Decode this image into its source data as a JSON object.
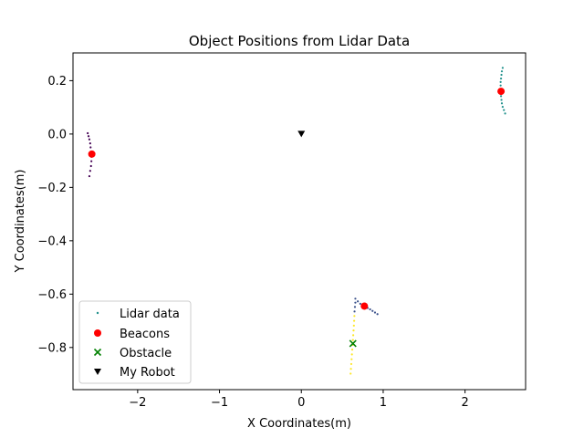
{
  "chart_data": {
    "type": "scatter",
    "title": "Object Positions from Lidar Data",
    "xlabel": "X Coordinates(m)",
    "ylabel": "Y Coordinates(m)",
    "xlim": [
      -2.79,
      2.74
    ],
    "ylim": [
      -0.958,
      0.304
    ],
    "xticks": [
      -2,
      -1,
      0,
      1,
      2
    ],
    "yticks": [
      0.2,
      0.0,
      -0.2,
      -0.4,
      -0.6,
      -0.8
    ],
    "xtick_labels": [
      "−2",
      "−1",
      "0",
      "1",
      "2"
    ],
    "ytick_labels": [
      "0.2",
      "0.0",
      "−0.2",
      "−0.4",
      "−0.6",
      "−0.8"
    ],
    "grid": false,
    "legend_position": "lower-left",
    "series": [
      {
        "name": "Lidar data",
        "marker": "point",
        "legend_color": "#21918c",
        "points": [
          {
            "x": -2.61,
            "y": 0.003,
            "color": "#440154"
          },
          {
            "x": -2.6,
            "y": -0.008,
            "color": "#440154"
          },
          {
            "x": -2.59,
            "y": -0.02,
            "color": "#440154"
          },
          {
            "x": -2.58,
            "y": -0.035,
            "color": "#440154"
          },
          {
            "x": -2.575,
            "y": -0.05,
            "color": "#440154"
          },
          {
            "x": -2.57,
            "y": -0.068,
            "color": "#440154"
          },
          {
            "x": -2.565,
            "y": -0.085,
            "color": "#440154"
          },
          {
            "x": -2.565,
            "y": -0.102,
            "color": "#440154"
          },
          {
            "x": -2.57,
            "y": -0.12,
            "color": "#440154"
          },
          {
            "x": -2.58,
            "y": -0.138,
            "color": "#440154"
          },
          {
            "x": -2.59,
            "y": -0.158,
            "color": "#440154"
          },
          {
            "x": 2.46,
            "y": 0.248,
            "color": "#21918c"
          },
          {
            "x": 2.45,
            "y": 0.235,
            "color": "#21918c"
          },
          {
            "x": 2.445,
            "y": 0.222,
            "color": "#21918c"
          },
          {
            "x": 2.44,
            "y": 0.208,
            "color": "#21918c"
          },
          {
            "x": 2.435,
            "y": 0.195,
            "color": "#21918c"
          },
          {
            "x": 2.435,
            "y": 0.182,
            "color": "#21918c"
          },
          {
            "x": 2.435,
            "y": 0.168,
            "color": "#21918c"
          },
          {
            "x": 2.437,
            "y": 0.155,
            "color": "#21918c"
          },
          {
            "x": 2.44,
            "y": 0.142,
            "color": "#21918c"
          },
          {
            "x": 2.445,
            "y": 0.128,
            "color": "#21918c"
          },
          {
            "x": 2.45,
            "y": 0.115,
            "color": "#21918c"
          },
          {
            "x": 2.46,
            "y": 0.102,
            "color": "#21918c"
          },
          {
            "x": 2.475,
            "y": 0.09,
            "color": "#21918c"
          },
          {
            "x": 2.49,
            "y": 0.077,
            "color": "#21918c"
          },
          {
            "x": 0.66,
            "y": -0.617,
            "color": "#3b528b"
          },
          {
            "x": 0.69,
            "y": -0.627,
            "color": "#3b528b"
          },
          {
            "x": 0.72,
            "y": -0.636,
            "color": "#3b528b"
          },
          {
            "x": 0.75,
            "y": -0.643,
            "color": "#3b528b"
          },
          {
            "x": 0.78,
            "y": -0.647,
            "color": "#3b528b"
          },
          {
            "x": 0.81,
            "y": -0.652,
            "color": "#3b528b"
          },
          {
            "x": 0.84,
            "y": -0.657,
            "color": "#3b528b"
          },
          {
            "x": 0.87,
            "y": -0.663,
            "color": "#3b528b"
          },
          {
            "x": 0.9,
            "y": -0.669,
            "color": "#3b528b"
          },
          {
            "x": 0.93,
            "y": -0.675,
            "color": "#3b528b"
          },
          {
            "x": 0.66,
            "y": -0.632,
            "color": "#3b528b"
          },
          {
            "x": 0.655,
            "y": -0.648,
            "color": "#3b528b"
          },
          {
            "x": 0.65,
            "y": -0.665,
            "color": "#3b528b"
          },
          {
            "x": 0.648,
            "y": -0.682,
            "color": "#fde725"
          },
          {
            "x": 0.645,
            "y": -0.7,
            "color": "#fde725"
          },
          {
            "x": 0.642,
            "y": -0.718,
            "color": "#fde725"
          },
          {
            "x": 0.638,
            "y": -0.736,
            "color": "#fde725"
          },
          {
            "x": 0.634,
            "y": -0.754,
            "color": "#fde725"
          },
          {
            "x": 0.63,
            "y": -0.772,
            "color": "#fde725"
          },
          {
            "x": 0.626,
            "y": -0.79,
            "color": "#fde725"
          },
          {
            "x": 0.622,
            "y": -0.808,
            "color": "#fde725"
          },
          {
            "x": 0.618,
            "y": -0.826,
            "color": "#fde725"
          },
          {
            "x": 0.614,
            "y": -0.844,
            "color": "#fde725"
          },
          {
            "x": 0.61,
            "y": -0.862,
            "color": "#fde725"
          },
          {
            "x": 0.606,
            "y": -0.88,
            "color": "#fde725"
          },
          {
            "x": 0.602,
            "y": -0.898,
            "color": "#fde725"
          }
        ]
      },
      {
        "name": "Beacons",
        "marker": "circle",
        "color": "#ff0000",
        "points": [
          {
            "x": -2.56,
            "y": -0.075
          },
          {
            "x": 2.44,
            "y": 0.16
          },
          {
            "x": 0.77,
            "y": -0.645
          }
        ]
      },
      {
        "name": "Obstacle",
        "marker": "x",
        "color": "#008000",
        "points": [
          {
            "x": 0.63,
            "y": -0.785
          }
        ]
      },
      {
        "name": "My Robot",
        "marker": "triangle-down",
        "color": "#000000",
        "points": [
          {
            "x": 0.0,
            "y": 0.0
          }
        ]
      }
    ]
  }
}
